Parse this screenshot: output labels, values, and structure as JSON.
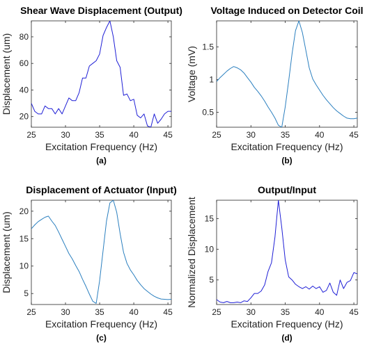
{
  "chart_data": [
    {
      "type": "line",
      "title": "Shear Wave Displacement (Output)",
      "xlabel": "Excitation Frequency (Hz)",
      "ylabel": "Displacement (um)",
      "panel_label": "(a)",
      "xlim": [
        25,
        45.5
      ],
      "ylim": [
        12,
        92
      ],
      "xticks": [
        25,
        30,
        35,
        40,
        45
      ],
      "yticks": [
        20,
        40,
        60,
        80
      ],
      "color": "#1f1fd6",
      "x": [
        25,
        25.5,
        26,
        26.5,
        27,
        27.5,
        28,
        28.5,
        29,
        29.5,
        30,
        30.5,
        31,
        31.5,
        32,
        32.5,
        33,
        33.5,
        34,
        34.5,
        35,
        35.5,
        36,
        36.5,
        37,
        37.5,
        38,
        38.5,
        39,
        39.5,
        40,
        40.5,
        41,
        41.5,
        42,
        42.5,
        43,
        43.5,
        44,
        44.5,
        45,
        45.5
      ],
      "y": [
        30,
        24,
        22,
        22,
        28,
        26,
        26,
        22,
        26,
        22,
        28,
        34,
        32,
        32,
        38,
        49,
        49,
        58,
        60,
        62,
        67,
        81,
        87,
        92,
        80,
        62,
        57,
        36,
        37,
        32,
        33,
        21,
        19,
        22,
        13,
        12,
        22,
        15,
        18,
        22,
        24,
        24
      ]
    },
    {
      "type": "line",
      "title": "Voltage Induced on Detector Coil",
      "xlabel": "Excitation Frequency (Hz)",
      "ylabel": "Voltage (mV)",
      "panel_label": "(b)",
      "xlim": [
        25,
        45.5
      ],
      "ylim": [
        0.27,
        1.9
      ],
      "xticks": [
        25,
        30,
        35,
        40,
        45
      ],
      "yticks": [
        0.5,
        1,
        1.5
      ],
      "color": "#2a7fbf",
      "x": [
        25,
        25.5,
        26,
        26.5,
        27,
        27.5,
        28,
        28.5,
        29,
        29.5,
        30,
        30.5,
        31,
        31.5,
        32,
        32.5,
        33,
        33.5,
        34,
        34.5,
        35,
        35.5,
        36,
        36.5,
        37,
        37.5,
        38,
        38.5,
        39,
        39.5,
        40,
        40.5,
        41,
        41.5,
        42,
        42.5,
        43,
        43.5,
        44,
        44.5,
        45,
        45.5
      ],
      "y": [
        0.97,
        1.03,
        1.08,
        1.13,
        1.17,
        1.2,
        1.18,
        1.15,
        1.1,
        1.03,
        0.96,
        0.88,
        0.82,
        0.75,
        0.67,
        0.58,
        0.5,
        0.41,
        0.3,
        0.27,
        0.58,
        0.98,
        1.4,
        1.75,
        1.9,
        1.72,
        1.45,
        1.18,
        1.01,
        0.92,
        0.84,
        0.76,
        0.69,
        0.63,
        0.57,
        0.52,
        0.48,
        0.44,
        0.41,
        0.4,
        0.4,
        0.41
      ]
    },
    {
      "type": "line",
      "title": "Displacement of Actuator (Input)",
      "xlabel": "Excitation Frequency (Hz)",
      "ylabel": "Displacement (um)",
      "panel_label": "(c)",
      "xlim": [
        25,
        45.5
      ],
      "ylim": [
        3,
        22
      ],
      "xticks": [
        25,
        30,
        35,
        40,
        45
      ],
      "yticks": [
        5,
        10,
        15,
        20
      ],
      "color": "#2a7fbf",
      "x": [
        25,
        25.5,
        26,
        26.5,
        27,
        27.5,
        28,
        28.5,
        29,
        29.5,
        30,
        30.5,
        31,
        31.5,
        32,
        32.5,
        33,
        33.5,
        34,
        34.5,
        35,
        35.5,
        36,
        36.5,
        37,
        37.5,
        38,
        38.5,
        39,
        39.5,
        40,
        40.5,
        41,
        41.5,
        42,
        42.5,
        43,
        43.5,
        44,
        44.5,
        45,
        45.5
      ],
      "y": [
        16.8,
        17.5,
        18.1,
        18.5,
        18.9,
        19.1,
        18.2,
        17.4,
        16.2,
        14.9,
        13.6,
        12.3,
        11.3,
        10.1,
        9,
        7.6,
        6.3,
        4.9,
        3.6,
        3.2,
        7.3,
        12.8,
        18.2,
        21.5,
        22,
        19.8,
        15.9,
        12.5,
        10.5,
        9.3,
        8.4,
        7.4,
        6.6,
        5.9,
        5.4,
        4.9,
        4.5,
        4.2,
        4,
        3.95,
        3.9,
        3.95
      ]
    },
    {
      "type": "line",
      "title": "Output/Input",
      "xlabel": "Excitation Frequency (Hz)",
      "ylabel": "Normalized Displacement",
      "panel_label": "(d)",
      "xlim": [
        25,
        45.5
      ],
      "ylim": [
        1,
        18
      ],
      "xticks": [
        25,
        30,
        35,
        40,
        45
      ],
      "yticks": [
        5,
        10,
        15
      ],
      "color": "#1f1fd6",
      "x": [
        25,
        25.5,
        26,
        26.5,
        27,
        27.5,
        28,
        28.5,
        29,
        29.5,
        30,
        30.5,
        31,
        31.5,
        32,
        32.5,
        33,
        33.5,
        34,
        34.5,
        35,
        35.5,
        36,
        36.5,
        37,
        37.5,
        38,
        38.5,
        39,
        39.5,
        40,
        40.5,
        41,
        41.5,
        42,
        42.5,
        43,
        43.5,
        44,
        44.5,
        45,
        45.5
      ],
      "y": [
        1.8,
        1.4,
        1.3,
        1.5,
        1.3,
        1.3,
        1.4,
        1.3,
        1.6,
        1.5,
        2.1,
        2.8,
        2.8,
        3.2,
        4.2,
        6.4,
        7.8,
        12,
        18,
        13.5,
        8.3,
        5.5,
        5,
        4.3,
        3.9,
        3.6,
        3.9,
        3.5,
        4,
        3.6,
        3.9,
        3,
        3.3,
        4.5,
        3,
        2.5,
        5,
        3.6,
        4.6,
        4.9,
        6.2,
        6
      ]
    }
  ]
}
